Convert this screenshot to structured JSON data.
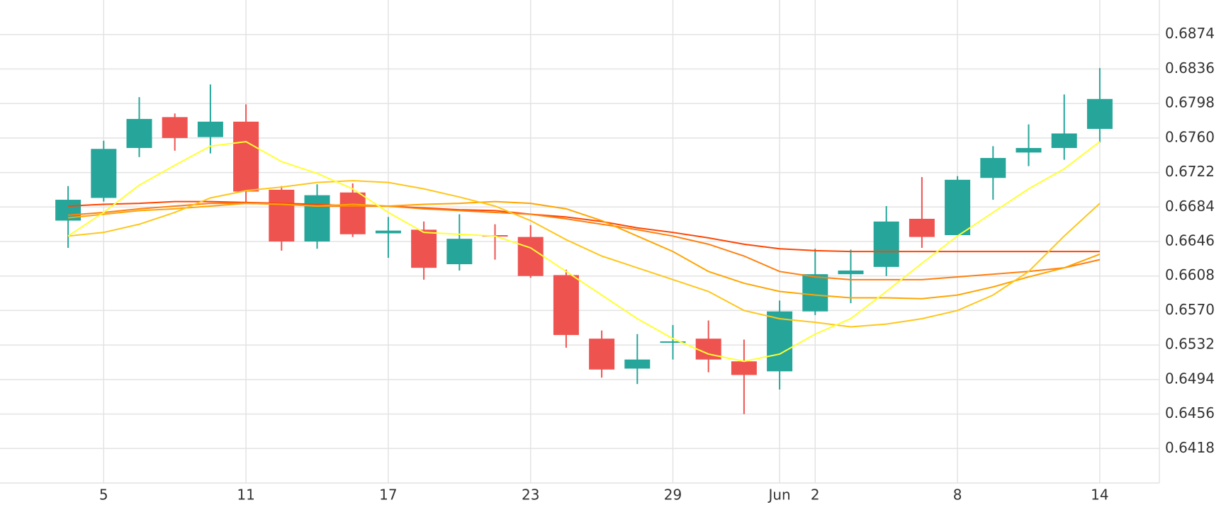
{
  "chart_data": {
    "type": "candlestick",
    "categories": [
      null,
      "5",
      null,
      null,
      null,
      "11",
      null,
      null,
      null,
      "17",
      null,
      null,
      null,
      "23",
      null,
      null,
      null,
      "29",
      null,
      null,
      "Jun",
      "2",
      null,
      null,
      null,
      "8",
      null,
      null,
      null,
      "14"
    ],
    "open": [
      0.6669,
      0.6694,
      0.6749,
      0.6783,
      0.6761,
      0.6778,
      0.6703,
      0.6646,
      0.67,
      0.6655,
      0.6659,
      0.6621,
      0.6653,
      0.6651,
      0.6609,
      0.6539,
      0.6506,
      0.6535,
      0.6539,
      0.6514,
      0.6503,
      0.6569,
      0.661,
      0.6618,
      0.6671,
      0.6653,
      0.6716,
      0.6744,
      0.6749,
      0.677
    ],
    "high": [
      0.6707,
      0.6757,
      0.6805,
      0.6787,
      0.6819,
      0.6797,
      0.6707,
      0.6709,
      0.671,
      0.6673,
      0.6668,
      0.6676,
      0.6665,
      0.6664,
      0.6615,
      0.6548,
      0.6544,
      0.6554,
      0.6559,
      0.6538,
      0.6581,
      0.6638,
      0.6637,
      0.6685,
      0.6717,
      0.6718,
      0.6751,
      0.6775,
      0.6808,
      0.6837
    ],
    "low": [
      0.6639,
      0.669,
      0.6739,
      0.6746,
      0.6743,
      0.6688,
      0.6636,
      0.6638,
      0.6651,
      0.6628,
      0.6604,
      0.6614,
      0.6626,
      0.6606,
      0.6529,
      0.6496,
      0.6489,
      0.6516,
      0.6502,
      0.6456,
      0.6483,
      0.6565,
      0.6578,
      0.6608,
      0.6639,
      0.6653,
      0.6692,
      0.6729,
      0.6736,
      0.6755
    ],
    "close": [
      0.6692,
      0.6748,
      0.6781,
      0.676,
      0.6778,
      0.6701,
      0.6646,
      0.6697,
      0.6654,
      0.6658,
      0.6617,
      0.6649,
      0.6652,
      0.6608,
      0.6543,
      0.6505,
      0.6516,
      0.6536,
      0.6516,
      0.6499,
      0.6569,
      0.661,
      0.6614,
      0.6668,
      0.6651,
      0.6714,
      0.6738,
      0.6749,
      0.6765,
      0.6803
    ],
    "up_color": "#26a69a",
    "down_color": "#ef5350",
    "series": [
      {
        "color": "#ff4500",
        "values": [
          0.6685,
          0.6687,
          0.6688,
          0.669,
          0.669,
          0.6689,
          0.6688,
          0.6687,
          0.6685,
          0.6685,
          0.6683,
          0.6681,
          0.668,
          0.6676,
          0.6673,
          0.6668,
          0.6661,
          0.6656,
          0.665,
          0.6643,
          0.6638,
          0.6636,
          0.6635,
          0.6635,
          0.6635,
          0.6635,
          0.6635,
          0.6635,
          0.6635,
          0.6635
        ]
      },
      {
        "color": "#ff7f0e",
        "values": [
          0.6675,
          0.6678,
          0.6682,
          0.6685,
          0.6688,
          0.6688,
          0.6687,
          0.6685,
          0.6685,
          0.6685,
          0.6682,
          0.668,
          0.6678,
          0.6676,
          0.6671,
          0.6665,
          0.6659,
          0.6652,
          0.6643,
          0.663,
          0.6613,
          0.6607,
          0.6604,
          0.6604,
          0.6604,
          0.6607,
          0.661,
          0.6613,
          0.6617,
          0.6626
        ]
      },
      {
        "color": "#ffa500",
        "values": [
          0.6672,
          0.6676,
          0.668,
          0.6682,
          0.6685,
          0.6688,
          0.6687,
          0.6685,
          0.6687,
          0.6685,
          0.6687,
          0.6688,
          0.669,
          0.6688,
          0.6682,
          0.6669,
          0.6652,
          0.6635,
          0.6613,
          0.66,
          0.6591,
          0.6587,
          0.6584,
          0.6584,
          0.6583,
          0.6587,
          0.6596,
          0.6607,
          0.6617,
          0.6632
        ]
      },
      {
        "color": "#ffc61a",
        "values": [
          0.6652,
          0.6656,
          0.6665,
          0.6678,
          0.6694,
          0.6702,
          0.6706,
          0.6711,
          0.6713,
          0.6711,
          0.6704,
          0.6695,
          0.6685,
          0.6669,
          0.6648,
          0.663,
          0.6617,
          0.6604,
          0.6591,
          0.657,
          0.6561,
          0.6557,
          0.6552,
          0.6555,
          0.6561,
          0.657,
          0.6587,
          0.6613,
          0.6652,
          0.6688
        ]
      },
      {
        "color": "#ffff33",
        "values": [
          0.6652,
          0.6678,
          0.6708,
          0.673,
          0.6751,
          0.6756,
          0.6734,
          0.6721,
          0.6704,
          0.6678,
          0.6656,
          0.6654,
          0.6652,
          0.6639,
          0.6613,
          0.6587,
          0.6561,
          0.6539,
          0.6522,
          0.6514,
          0.6522,
          0.6544,
          0.6561,
          0.6591,
          0.6622,
          0.6652,
          0.6678,
          0.6704,
          0.6726,
          0.6756
        ]
      }
    ],
    "ylim": [
      0.638,
      0.6912
    ],
    "yticks": [
      0.6418,
      0.6456,
      0.6494,
      0.6532,
      {
        "value": 0.657,
        "label": "0.6570"
      },
      0.6608,
      0.6646,
      0.6684,
      0.6722,
      {
        "value": 0.676,
        "label": "0.6760"
      },
      0.6798,
      0.6836,
      0.6874
    ],
    "grid": true
  }
}
